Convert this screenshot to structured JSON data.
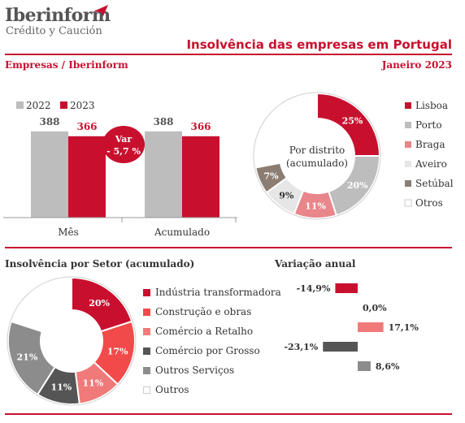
{
  "brand": {
    "name": "Iberinform",
    "tagline": "Crédito y Caución"
  },
  "header": {
    "title": "Insolvência das empresas em Portugal",
    "source": "Empresas / Iberinform",
    "date": "Janeiro 2023"
  },
  "colors": {
    "red": "#c8102e",
    "gray": "#bdbdbd",
    "pink": "#e9868b",
    "lightgray": "#e6e6e6",
    "brown": "#8c7d72",
    "white": "#ffffff"
  },
  "chart_data": [
    {
      "type": "bar",
      "categories": [
        "Mês",
        "Acumulado"
      ],
      "series": [
        {
          "name": "2022",
          "values": [
            388,
            388
          ],
          "color": "#bdbdbd"
        },
        {
          "name": "2023",
          "values": [
            366,
            366
          ],
          "color": "#c8102e"
        }
      ],
      "ylim": [
        0,
        420
      ],
      "annotation": {
        "line1": "Var",
        "line2": "- 5,7 %"
      }
    },
    {
      "type": "pie",
      "title": "Por distrito (acumulado)",
      "center_label": [
        "Por distrito",
        "(acumulado)"
      ],
      "slices": [
        {
          "name": "Lisboa",
          "value": 25,
          "label": "25%",
          "color": "#c8102e"
        },
        {
          "name": "Porto",
          "value": 20,
          "label": "20%",
          "color": "#bdbdbd"
        },
        {
          "name": "Braga",
          "value": 11,
          "label": "11%",
          "color": "#e9868b"
        },
        {
          "name": "Aveiro",
          "value": 9,
          "label": "9%",
          "color": "#e6e6e6"
        },
        {
          "name": "Setúbal",
          "value": 7,
          "label": "7%",
          "color": "#8c7d72"
        },
        {
          "name": "Otros",
          "value": 28,
          "label": "",
          "color": "#ffffff"
        }
      ]
    },
    {
      "type": "pie",
      "title": "Insolvência por Setor (acumulado)",
      "slices": [
        {
          "name": "Indústria transformadora",
          "value": 20,
          "label": "20%",
          "color": "#c8102e"
        },
        {
          "name": "Construção e obras",
          "value": 17,
          "label": "17%",
          "color": "#f24a4a"
        },
        {
          "name": "Comércio a Retalho",
          "value": 11,
          "label": "11%",
          "color": "#f07a7a"
        },
        {
          "name": "Comércio por Grosso",
          "value": 11,
          "label": "11%",
          "color": "#555555"
        },
        {
          "name": "Outros Serviços",
          "value": 21,
          "label": "21%",
          "color": "#8c8c8c"
        },
        {
          "name": "Outros",
          "value": 20,
          "label": "",
          "color": "#ffffff"
        }
      ]
    },
    {
      "type": "bar",
      "title": "Variação anual",
      "orientation": "horizontal",
      "categories": [
        "Indústria transformadora",
        "Construção e obras",
        "Comércio a Retalho",
        "Comércio por Grosso",
        "Outros Serviços"
      ],
      "values": [
        -14.9,
        0.0,
        17.1,
        -23.1,
        8.6
      ],
      "labels": [
        "-14,9%",
        "0,0%",
        "17,1%",
        "-23,1%",
        "8,6%"
      ],
      "colors": [
        "#c8102e",
        "#f24a4a",
        "#f07a7a",
        "#555555",
        "#8c8c8c"
      ]
    }
  ]
}
